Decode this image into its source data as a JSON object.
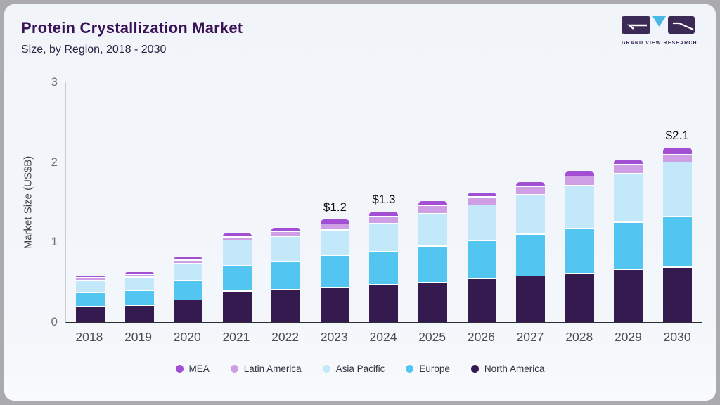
{
  "header": {
    "title": "Protein Crystallization Market",
    "subtitle": "Size, by Region, 2018 - 2030",
    "logo_text": "GRAND VIEW RESEARCH"
  },
  "logo_colors": {
    "block": "#3b2a55",
    "triangle": "#49b8e5",
    "glyph": "#ffffff"
  },
  "chart_data": {
    "type": "bar",
    "stacked": true,
    "title": "Protein Crystallization Market Size, by Region, 2018 - 2030",
    "ylabel": "Market Size (US$B)",
    "xlabel": "",
    "ylim": [
      0,
      3
    ],
    "yticks": [
      0,
      1,
      2,
      3
    ],
    "grid": false,
    "legend_position": "bottom",
    "categories": [
      "2018",
      "2019",
      "2020",
      "2021",
      "2022",
      "2023",
      "2024",
      "2025",
      "2026",
      "2027",
      "2028",
      "2029",
      "2030"
    ],
    "series": [
      {
        "name": "North America",
        "color": "#341a4e",
        "values": [
          0.19,
          0.2,
          0.27,
          0.38,
          0.4,
          0.43,
          0.46,
          0.49,
          0.54,
          0.57,
          0.6,
          0.65,
          0.68
        ]
      },
      {
        "name": "Europe",
        "color": "#52c6f0",
        "values": [
          0.16,
          0.17,
          0.23,
          0.31,
          0.34,
          0.38,
          0.4,
          0.44,
          0.46,
          0.51,
          0.55,
          0.58,
          0.62
        ]
      },
      {
        "name": "Asia Pacific",
        "color": "#c3e8f9",
        "values": [
          0.14,
          0.16,
          0.2,
          0.3,
          0.3,
          0.31,
          0.34,
          0.39,
          0.43,
          0.48,
          0.53,
          0.6,
          0.67
        ]
      },
      {
        "name": "Latin America",
        "color": "#cf9fe6",
        "values": [
          0.02,
          0.02,
          0.03,
          0.03,
          0.05,
          0.06,
          0.08,
          0.09,
          0.09,
          0.09,
          0.1,
          0.1,
          0.08
        ]
      },
      {
        "name": "MEA",
        "color": "#a24fd4",
        "values": [
          0.02,
          0.02,
          0.03,
          0.04,
          0.04,
          0.05,
          0.05,
          0.05,
          0.05,
          0.05,
          0.06,
          0.05,
          0.08
        ]
      }
    ],
    "value_labels": {
      "2023": "$1.2",
      "2024": "$1.3",
      "2030": "$2.1"
    },
    "legend_order": [
      "MEA",
      "Latin America",
      "Asia Pacific",
      "Europe",
      "North America"
    ]
  }
}
